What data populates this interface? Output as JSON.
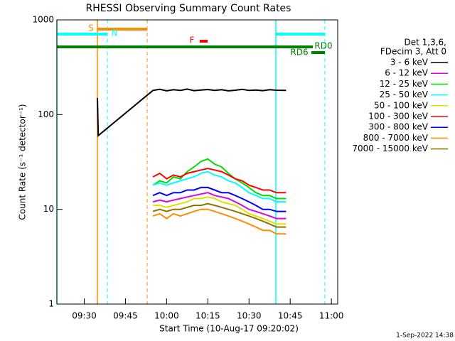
{
  "chart_data": {
    "type": "line",
    "title": "RHESSI Observing Summary Count Rates",
    "x_label": "Start Time (10-Aug-17 09:20:02)",
    "y_label": "Count Rate (s⁻¹ detector⁻¹)",
    "footer": "1-Sep-2022 14:38",
    "legend_header": [
      "Det 1,3,6,",
      "FDecim 3, Att 0"
    ],
    "annotations": [
      "S",
      "N",
      "F",
      "RD0",
      "RD6"
    ],
    "log_y": true,
    "xlim": [
      20.03,
      122.3
    ],
    "ylim": [
      1,
      1000
    ],
    "xticks": [
      {
        "value": 30,
        "label": "09:30"
      },
      {
        "value": 45,
        "label": "09:45"
      },
      {
        "value": 60,
        "label": "10:00"
      },
      {
        "value": 75,
        "label": "10:15"
      },
      {
        "value": 90,
        "label": "10:30"
      },
      {
        "value": 105,
        "label": "10:45"
      },
      {
        "value": 120,
        "label": "11:00"
      }
    ],
    "yticks": [
      1,
      10,
      100,
      1000
    ],
    "x": [
      34.8,
      35.1,
      55.0,
      57.5,
      60,
      62.5,
      65,
      67.5,
      70,
      72.5,
      75,
      77.5,
      80,
      82.5,
      85,
      87.5,
      90,
      92.5,
      95,
      97.5,
      100,
      103.5
    ],
    "series": [
      {
        "name": "3 - 6 keV",
        "color": "#000000",
        "values": [
          150,
          60,
          180,
          185,
          178,
          183,
          180,
          186,
          179,
          182,
          184,
          180,
          183,
          178,
          181,
          185,
          180,
          182,
          179,
          183,
          181,
          180
        ]
      },
      {
        "name": "6 - 12 keV",
        "color": "#e000e0",
        "values": [
          null,
          null,
          12,
          12.5,
          12,
          12.5,
          13,
          13.5,
          14,
          14.5,
          15,
          14,
          13.5,
          13,
          12,
          11,
          10,
          9.5,
          9,
          8.5,
          8,
          8
        ]
      },
      {
        "name": "12 - 25 keV",
        "color": "#00e000",
        "values": [
          null,
          null,
          18,
          20,
          19,
          22,
          21,
          25,
          28,
          32,
          34,
          30,
          28,
          24,
          21,
          19,
          17,
          15,
          14,
          14,
          13,
          13
        ]
      },
      {
        "name": "25 - 50 keV",
        "color": "#00ffff",
        "values": [
          null,
          null,
          18,
          19,
          18,
          19,
          20,
          21,
          22,
          24,
          25,
          23,
          22,
          20,
          19,
          17,
          15,
          14,
          13,
          13,
          12,
          12
        ]
      },
      {
        "name": "50 - 100 keV",
        "color": "#e0e000",
        "values": [
          null,
          null,
          11,
          11,
          10.5,
          11,
          11.5,
          12,
          13,
          13,
          13.5,
          13,
          12,
          11.5,
          11,
          10,
          9,
          8.5,
          8,
          7.5,
          7,
          7
        ]
      },
      {
        "name": "100 - 300 keV",
        "color": "#ff0000",
        "values": [
          null,
          null,
          22,
          24,
          21,
          23,
          22,
          24,
          25,
          26,
          27,
          26,
          25,
          23,
          21,
          20,
          18,
          17,
          16,
          16,
          15,
          15
        ]
      },
      {
        "name": "300 - 800 keV",
        "color": "#0000ff",
        "values": [
          null,
          null,
          14,
          15,
          14,
          15,
          15,
          16,
          16,
          17,
          17,
          16,
          15,
          15,
          14,
          13,
          12,
          11,
          10,
          10,
          9.5,
          9.5
        ]
      },
      {
        "name": "800 - 7000 keV",
        "color": "#ff8c00",
        "values": [
          null,
          null,
          8.5,
          9,
          8,
          9,
          8.5,
          9,
          9.5,
          10,
          10,
          9.5,
          9,
          8.5,
          8,
          7.5,
          7,
          6.5,
          6,
          6,
          5.5,
          5.5
        ]
      },
      {
        "name": "7000 - 15000 keV",
        "color": "#8b7500",
        "values": [
          null,
          null,
          9.5,
          10,
          9.5,
          10,
          10,
          10.5,
          11,
          11,
          11.5,
          11,
          10.5,
          10,
          9.5,
          9,
          8.5,
          8,
          7.5,
          7,
          6.5,
          6.5
        ]
      }
    ]
  }
}
